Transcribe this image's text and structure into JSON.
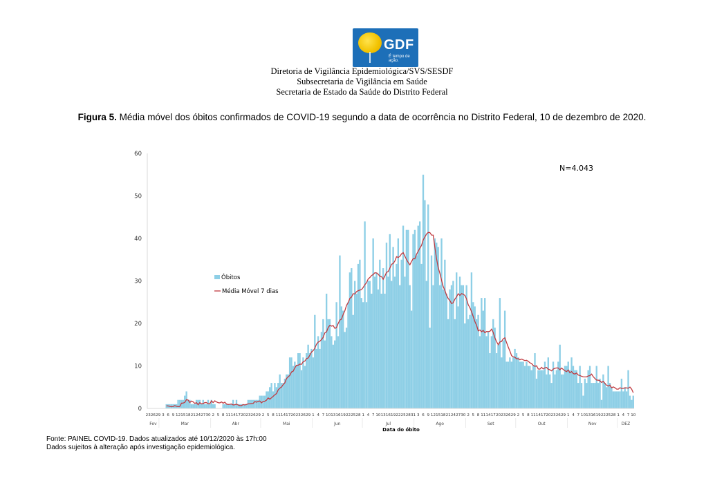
{
  "header": {
    "logo": {
      "text": "GDF",
      "slogan": "É tempo de ação.",
      "icon": "ipe-tree-icon"
    },
    "lines": [
      "Diretoria de Vigilância Epidemiológica/SVS/SESDF",
      "Subsecretaria de Vigilância em Saúde",
      "Secretaria de Estado da Saúde do Distrito Federal"
    ]
  },
  "figure": {
    "label": "Figura 5.",
    "caption": "Média móvel dos óbitos confirmados de COVID-19 segundo a data de ocorrência no Distrito Federal, 10 de dezembro de 2020."
  },
  "footer": {
    "source": "Fonte: PAINEL COVID-19. Dados atualizados até 10/12/2020 às 17h:00",
    "note": "Dados sujeitos à alteração após investigação epidemiológica."
  },
  "colors": {
    "bars": "#8ecfe6",
    "line": "#c0393f",
    "axis": "#d9d9d9"
  },
  "chart_data": {
    "type": "bar",
    "title": "",
    "xlabel": "Data do óbito",
    "ylabel": "",
    "ylim": [
      0,
      60
    ],
    "yticks": [
      0,
      10,
      20,
      30,
      40,
      50,
      60
    ],
    "grid": false,
    "annotation": "N=4.043",
    "legend": {
      "position": "left",
      "entries": [
        "Óbitos",
        "Média Móvel  7 dias"
      ]
    },
    "x_start": "2020-02-23",
    "x_end": "2020-12-10",
    "x_tick_step_days": 3,
    "months": [
      {
        "label": "Fev",
        "start": "2020-02-23",
        "end": "2020-02-29"
      },
      {
        "label": "Mar",
        "start": "2020-03-01",
        "end": "2020-03-31"
      },
      {
        "label": "Abr",
        "start": "2020-04-01",
        "end": "2020-04-30"
      },
      {
        "label": "Mai",
        "start": "2020-05-01",
        "end": "2020-05-31"
      },
      {
        "label": "Jun",
        "start": "2020-06-01",
        "end": "2020-06-30"
      },
      {
        "label": "Jul",
        "start": "2020-07-01",
        "end": "2020-07-31"
      },
      {
        "label": "Ago",
        "start": "2020-08-01",
        "end": "2020-08-31"
      },
      {
        "label": "Set",
        "start": "2020-09-01",
        "end": "2020-09-30"
      },
      {
        "label": "Out",
        "start": "2020-10-01",
        "end": "2020-10-31"
      },
      {
        "label": "Nov",
        "start": "2020-11-01",
        "end": "2020-11-30"
      },
      {
        "label": "DEZ",
        "start": "2020-12-01",
        "end": "2020-12-10"
      }
    ],
    "series": [
      {
        "name": "Óbitos",
        "type": "bar",
        "keyframes": [
          [
            "2020-02-23",
            0
          ],
          [
            "2020-03-04",
            0
          ],
          [
            "2020-03-05",
            1
          ],
          [
            "2020-03-10",
            1
          ],
          [
            "2020-03-14",
            2
          ],
          [
            "2020-03-17",
            3
          ],
          [
            "2020-03-20",
            1
          ],
          [
            "2020-03-24",
            2
          ],
          [
            "2020-03-28",
            1
          ],
          [
            "2020-04-01",
            2
          ],
          [
            "2020-04-05",
            0
          ],
          [
            "2020-04-10",
            1
          ],
          [
            "2020-04-15",
            2
          ],
          [
            "2020-04-20",
            1
          ],
          [
            "2020-04-25",
            2
          ],
          [
            "2020-05-01",
            3
          ],
          [
            "2020-05-05",
            4
          ],
          [
            "2020-05-10",
            6
          ],
          [
            "2020-05-14",
            8
          ],
          [
            "2020-05-18",
            10
          ],
          [
            "2020-05-22",
            11
          ],
          [
            "2020-05-26",
            12
          ],
          [
            "2020-05-30",
            14
          ],
          [
            "2020-06-03",
            16
          ],
          [
            "2020-06-07",
            19
          ],
          [
            "2020-06-11",
            20
          ],
          [
            "2020-06-15",
            22
          ],
          [
            "2020-06-19",
            24
          ],
          [
            "2020-06-23",
            27
          ],
          [
            "2020-06-27",
            28
          ],
          [
            "2020-07-01",
            30
          ],
          [
            "2020-07-05",
            32
          ],
          [
            "2020-07-09",
            33
          ],
          [
            "2020-07-13",
            34
          ],
          [
            "2020-07-17",
            36
          ],
          [
            "2020-07-21",
            35
          ],
          [
            "2020-07-25",
            36
          ],
          [
            "2020-07-29",
            37
          ],
          [
            "2020-08-02",
            39
          ],
          [
            "2020-08-05",
            43
          ],
          [
            "2020-08-08",
            41
          ],
          [
            "2020-08-12",
            38
          ],
          [
            "2020-08-15",
            33
          ],
          [
            "2020-08-19",
            29
          ],
          [
            "2020-08-23",
            26
          ],
          [
            "2020-08-27",
            27
          ],
          [
            "2020-08-31",
            26
          ],
          [
            "2020-09-04",
            22
          ],
          [
            "2020-09-08",
            19
          ],
          [
            "2020-09-12",
            19
          ],
          [
            "2020-09-16",
            16
          ],
          [
            "2020-09-20",
            16
          ],
          [
            "2020-09-24",
            14
          ],
          [
            "2020-09-28",
            12
          ],
          [
            "2020-10-02",
            12
          ],
          [
            "2020-10-06",
            11
          ],
          [
            "2020-10-10",
            10
          ],
          [
            "2020-10-14",
            9
          ],
          [
            "2020-10-18",
            9
          ],
          [
            "2020-10-22",
            10
          ],
          [
            "2020-10-26",
            9
          ],
          [
            "2020-10-30",
            9
          ],
          [
            "2020-11-03",
            9
          ],
          [
            "2020-11-07",
            8
          ],
          [
            "2020-11-11",
            8
          ],
          [
            "2020-11-15",
            7
          ],
          [
            "2020-11-19",
            7
          ],
          [
            "2020-11-23",
            6
          ],
          [
            "2020-11-27",
            5
          ],
          [
            "2020-12-01",
            5
          ],
          [
            "2020-12-05",
            5
          ],
          [
            "2020-12-10",
            3
          ]
        ],
        "spikes": [
          [
            "2020-05-24",
            13
          ],
          [
            "2020-06-02",
            22
          ],
          [
            "2020-06-09",
            27
          ],
          [
            "2020-06-17",
            36
          ],
          [
            "2020-06-20",
            18
          ],
          [
            "2020-06-24",
            33
          ],
          [
            "2020-06-29",
            35
          ],
          [
            "2020-07-02",
            44
          ],
          [
            "2020-07-07",
            40
          ],
          [
            "2020-07-14",
            27
          ],
          [
            "2020-07-17",
            41
          ],
          [
            "2020-07-22",
            40
          ],
          [
            "2020-07-27",
            42
          ],
          [
            "2020-07-30",
            23
          ],
          [
            "2020-08-03",
            43
          ],
          [
            "2020-08-04",
            44
          ],
          [
            "2020-08-06",
            55
          ],
          [
            "2020-08-10",
            19
          ],
          [
            "2020-08-13",
            40
          ],
          [
            "2020-08-17",
            40
          ],
          [
            "2020-08-20",
            27
          ],
          [
            "2020-08-24",
            30
          ],
          [
            "2020-08-28",
            31
          ],
          [
            "2020-09-01",
            29
          ],
          [
            "2020-09-04",
            32
          ],
          [
            "2020-09-10",
            26
          ],
          [
            "2020-09-12",
            26
          ],
          [
            "2020-09-17",
            21
          ],
          [
            "2020-09-21",
            26
          ],
          [
            "2020-09-24",
            23
          ],
          [
            "2020-09-28",
            11
          ],
          [
            "2020-10-05",
            11
          ],
          [
            "2020-10-09",
            10
          ],
          [
            "2020-10-12",
            13
          ],
          [
            "2020-10-18",
            11
          ],
          [
            "2020-10-22",
            6
          ],
          [
            "2020-10-27",
            15
          ],
          [
            "2020-11-01",
            11
          ],
          [
            "2020-11-03",
            12
          ],
          [
            "2020-11-06",
            9
          ],
          [
            "2020-11-10",
            3
          ],
          [
            "2020-11-14",
            10
          ],
          [
            "2020-11-18",
            10
          ],
          [
            "2020-11-21",
            2
          ],
          [
            "2020-11-25",
            10
          ],
          [
            "2020-11-29",
            4
          ],
          [
            "2020-12-03",
            7
          ],
          [
            "2020-12-07",
            9
          ],
          [
            "2020-12-09",
            2
          ]
        ]
      },
      {
        "name": "Média Móvel  7 dias",
        "type": "line",
        "keyframes": [
          [
            "2020-03-05",
            0.3
          ],
          [
            "2020-03-12",
            0.4
          ],
          [
            "2020-03-17",
            1.8
          ],
          [
            "2020-03-22",
            1.2
          ],
          [
            "2020-03-27",
            1.0
          ],
          [
            "2020-04-02",
            1.6
          ],
          [
            "2020-04-08",
            1.5
          ],
          [
            "2020-04-14",
            0.8
          ],
          [
            "2020-04-20",
            0.8
          ],
          [
            "2020-04-26",
            1.4
          ],
          [
            "2020-05-02",
            1.6
          ],
          [
            "2020-05-06",
            2.4
          ],
          [
            "2020-05-10",
            3.6
          ],
          [
            "2020-05-14",
            5.5
          ],
          [
            "2020-05-18",
            8.0
          ],
          [
            "2020-05-22",
            10.0
          ],
          [
            "2020-05-26",
            10.8
          ],
          [
            "2020-05-30",
            12.5
          ],
          [
            "2020-06-03",
            15.0
          ],
          [
            "2020-06-07",
            17.0
          ],
          [
            "2020-06-11",
            19.5
          ],
          [
            "2020-06-15",
            19.0
          ],
          [
            "2020-06-19",
            22.0
          ],
          [
            "2020-06-23",
            26.0
          ],
          [
            "2020-06-27",
            27.5
          ],
          [
            "2020-07-01",
            28.5
          ],
          [
            "2020-07-05",
            31.0
          ],
          [
            "2020-07-09",
            32.0
          ],
          [
            "2020-07-13",
            30.5
          ],
          [
            "2020-07-17",
            33.0
          ],
          [
            "2020-07-21",
            35.5
          ],
          [
            "2020-07-25",
            36.5
          ],
          [
            "2020-07-29",
            34.0
          ],
          [
            "2020-08-02",
            36.0
          ],
          [
            "2020-08-06",
            39.5
          ],
          [
            "2020-08-09",
            41.5
          ],
          [
            "2020-08-12",
            40.5
          ],
          [
            "2020-08-15",
            33.0
          ],
          [
            "2020-08-19",
            27.5
          ],
          [
            "2020-08-23",
            24.5
          ],
          [
            "2020-08-27",
            27.0
          ],
          [
            "2020-08-31",
            26.5
          ],
          [
            "2020-09-04",
            22.5
          ],
          [
            "2020-09-08",
            18.5
          ],
          [
            "2020-09-12",
            18.0
          ],
          [
            "2020-09-16",
            18.5
          ],
          [
            "2020-09-20",
            15.0
          ],
          [
            "2020-09-24",
            16.5
          ],
          [
            "2020-09-28",
            12.5
          ],
          [
            "2020-10-02",
            11.5
          ],
          [
            "2020-10-06",
            11.5
          ],
          [
            "2020-10-10",
            10.5
          ],
          [
            "2020-10-14",
            9.5
          ],
          [
            "2020-10-18",
            9.5
          ],
          [
            "2020-10-22",
            9.0
          ],
          [
            "2020-10-26",
            9.5
          ],
          [
            "2020-10-30",
            9.0
          ],
          [
            "2020-11-03",
            8.5
          ],
          [
            "2020-11-07",
            8.0
          ],
          [
            "2020-11-11",
            7.5
          ],
          [
            "2020-11-15",
            7.8
          ],
          [
            "2020-11-19",
            6.5
          ],
          [
            "2020-11-23",
            6.0
          ],
          [
            "2020-11-27",
            5.0
          ],
          [
            "2020-12-01",
            4.8
          ],
          [
            "2020-12-05",
            4.6
          ],
          [
            "2020-12-08",
            5.2
          ],
          [
            "2020-12-10",
            4.0
          ]
        ]
      }
    ]
  }
}
